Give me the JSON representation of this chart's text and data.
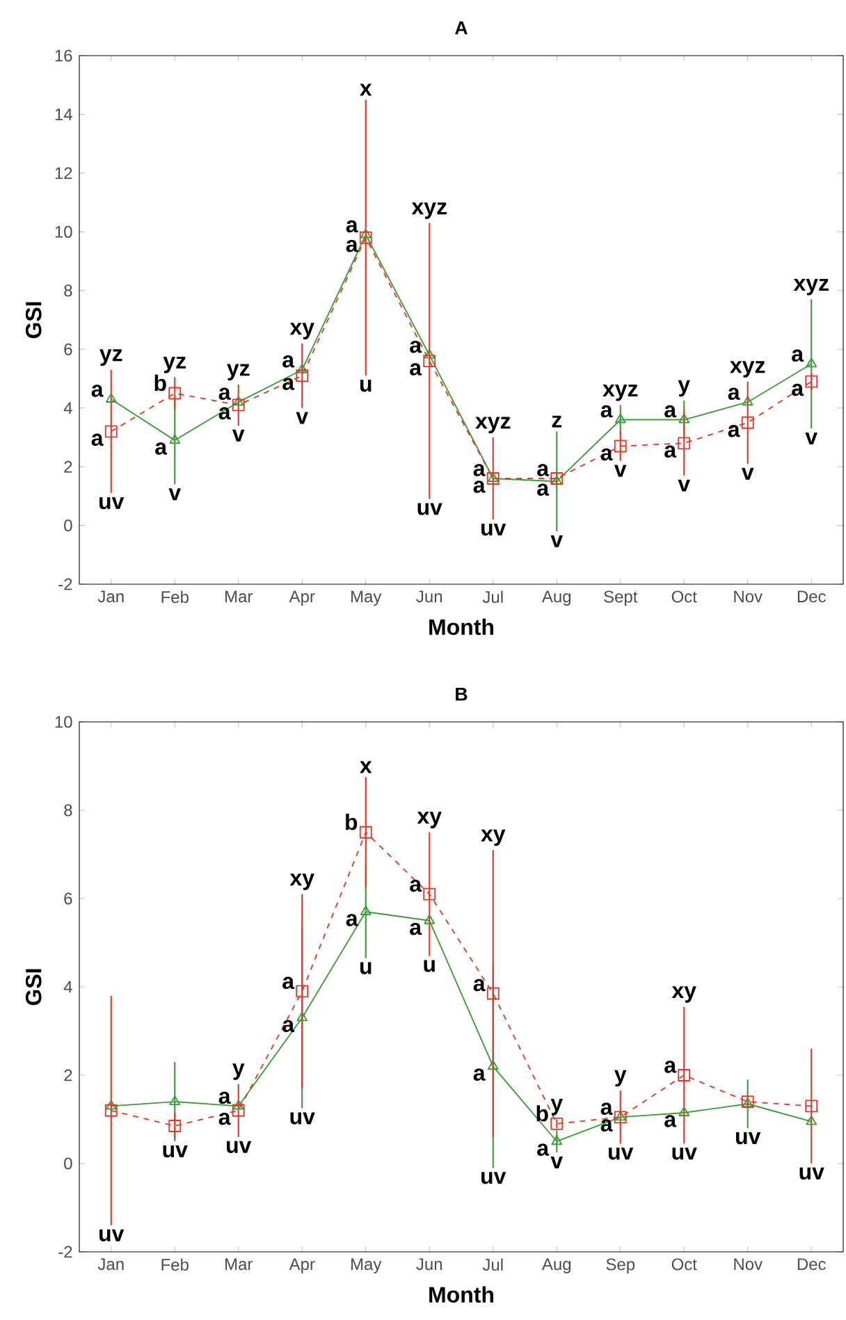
{
  "chart_data": [
    {
      "type": "line",
      "title": "A",
      "xlabel": "Month",
      "ylabel": "GSI",
      "categories": [
        "Jan",
        "Feb",
        "Mar",
        "Apr",
        "May",
        "Jun",
        "Jul",
        "Aug",
        "Sept",
        "Oct",
        "Nov",
        "Dec"
      ],
      "series": [
        {
          "color": "#3c9c3c",
          "marker": "triangle",
          "line_style": "solid",
          "values": [
            4.3,
            2.9,
            4.2,
            5.3,
            9.9,
            5.8,
            1.6,
            1.5,
            3.6,
            3.6,
            4.2,
            5.5
          ],
          "errors": [
            null,
            1.5,
            null,
            null,
            null,
            null,
            null,
            1.7,
            0.5,
            0.65,
            null,
            2.2
          ]
        },
        {
          "color": "#e0392b",
          "marker": "square",
          "line_style": "dashed",
          "values": [
            3.2,
            4.5,
            4.1,
            5.1,
            9.8,
            5.6,
            1.6,
            1.6,
            2.7,
            2.8,
            3.5,
            4.9
          ],
          "errors": [
            2.1,
            0.55,
            0.7,
            1.1,
            4.7,
            4.7,
            1.4,
            0.2,
            0.5,
            1.1,
            1.4,
            0.3
          ]
        }
      ],
      "ylim": [
        -2,
        16
      ],
      "yticks": [
        -2,
        0,
        2,
        4,
        6,
        8,
        10,
        12,
        14,
        16
      ],
      "annotations": [
        {
          "text": "yz",
          "x": "Jan",
          "y": 5.3
        },
        {
          "text": "a",
          "x": "Jan",
          "y": 4.3
        },
        {
          "text": "a",
          "x": "Jan",
          "y": 3.2
        },
        {
          "text": "uv",
          "x": "Jan",
          "y": 1.1
        },
        {
          "text": "yz",
          "x": "Feb",
          "y": 5.05
        },
        {
          "text": "b",
          "x": "Feb",
          "y": 4.5
        },
        {
          "text": "a",
          "x": "Feb",
          "y": 2.9
        },
        {
          "text": "v",
          "x": "Feb",
          "y": 1.4
        },
        {
          "text": "yz",
          "x": "Mar",
          "y": 4.8
        },
        {
          "text": "a",
          "x": "Mar",
          "y": 4.2
        },
        {
          "text": "a",
          "x": "Mar",
          "y": 4.1
        },
        {
          "text": "v",
          "x": "Mar",
          "y": 3.4
        },
        {
          "text": "xy",
          "x": "Apr",
          "y": 6.2
        },
        {
          "text": "a",
          "x": "Apr",
          "y": 5.3
        },
        {
          "text": "a",
          "x": "Apr",
          "y": 5.1
        },
        {
          "text": "v",
          "x": "Apr",
          "y": 4.0
        },
        {
          "text": "x",
          "x": "May",
          "y": 14.5
        },
        {
          "text": "a",
          "x": "May",
          "y": 9.9
        },
        {
          "text": "a",
          "x": "May",
          "y": 9.8
        },
        {
          "text": "u",
          "x": "May",
          "y": 5.1
        },
        {
          "text": "xyz",
          "x": "Jun",
          "y": 10.3
        },
        {
          "text": "a",
          "x": "Jun",
          "y": 5.8
        },
        {
          "text": "a",
          "x": "Jun",
          "y": 5.6
        },
        {
          "text": "uv",
          "x": "Jun",
          "y": 0.9
        },
        {
          "text": "xyz",
          "x": "Jul",
          "y": 3.0
        },
        {
          "text": "a",
          "x": "Jul",
          "y": 1.6
        },
        {
          "text": "a",
          "x": "Jul",
          "y": 1.6
        },
        {
          "text": "uv",
          "x": "Jul",
          "y": 0.2
        },
        {
          "text": "z",
          "x": "Aug",
          "y": 3.2
        },
        {
          "text": "a",
          "x": "Aug",
          "y": 1.6
        },
        {
          "text": "a",
          "x": "Aug",
          "y": 1.5
        },
        {
          "text": "v",
          "x": "Aug",
          "y": -0.2
        },
        {
          "text": "xyz",
          "x": "Sept",
          "y": 4.1
        },
        {
          "text": "a",
          "x": "Sept",
          "y": 3.6
        },
        {
          "text": "a",
          "x": "Sept",
          "y": 2.7
        },
        {
          "text": "v",
          "x": "Sept",
          "y": 2.2
        },
        {
          "text": "y",
          "x": "Oct",
          "y": 4.25
        },
        {
          "text": "a",
          "x": "Oct",
          "y": 3.6
        },
        {
          "text": "a",
          "x": "Oct",
          "y": 2.8
        },
        {
          "text": "v",
          "x": "Oct",
          "y": 1.7
        },
        {
          "text": "xyz",
          "x": "Nov",
          "y": 4.9
        },
        {
          "text": "a",
          "x": "Nov",
          "y": 4.2
        },
        {
          "text": "a",
          "x": "Nov",
          "y": 3.5
        },
        {
          "text": "v",
          "x": "Nov",
          "y": 2.1
        },
        {
          "text": "xyz",
          "x": "Dec",
          "y": 7.7
        },
        {
          "text": "a",
          "x": "Dec",
          "y": 5.5
        },
        {
          "text": "a",
          "x": "Dec",
          "y": 4.9
        },
        {
          "text": "v",
          "x": "Dec",
          "y": 3.3
        }
      ]
    },
    {
      "type": "line",
      "title": "B",
      "xlabel": "Month",
      "ylabel": "GSI",
      "categories": [
        "Jan",
        "Feb",
        "Mar",
        "Apr",
        "May",
        "Jun",
        "Jul",
        "Aug",
        "Sep",
        "Oct",
        "Nov",
        "Dec"
      ],
      "series": [
        {
          "color": "#3c9c3c",
          "marker": "triangle",
          "line_style": "solid",
          "values": [
            1.3,
            1.4,
            1.3,
            3.3,
            5.7,
            5.5,
            2.2,
            0.5,
            1.05,
            1.15,
            1.35,
            0.95
          ],
          "errors": [
            null,
            0.9,
            null,
            2.05,
            1.05,
            null,
            2.3,
            0.25,
            null,
            null,
            0.55,
            null
          ]
        },
        {
          "color": "#e0392b",
          "marker": "square",
          "line_style": "dashed",
          "values": [
            1.2,
            0.85,
            1.2,
            3.9,
            7.5,
            6.1,
            3.85,
            0.9,
            1.05,
            2.0,
            1.4,
            1.3
          ],
          "errors": [
            2.6,
            0.3,
            0.6,
            2.2,
            1.25,
            1.4,
            3.25,
            0.1,
            0.6,
            1.55,
            0.1,
            1.3
          ]
        }
      ],
      "ylim": [
        -2,
        10
      ],
      "yticks": [
        -2,
        0,
        2,
        4,
        6,
        8,
        10
      ],
      "annotations": [
        {
          "text": "uv",
          "x": "Jan",
          "y": -1.4
        },
        {
          "text": "uv",
          "x": "Feb",
          "y": 0.5
        },
        {
          "text": "y",
          "x": "Mar",
          "y": 1.8
        },
        {
          "text": "a",
          "x": "Mar",
          "y": 1.3
        },
        {
          "text": "a",
          "x": "Mar",
          "y": 1.2
        },
        {
          "text": "uv",
          "x": "Mar",
          "y": 0.6
        },
        {
          "text": "xy",
          "x": "Apr",
          "y": 6.1
        },
        {
          "text": "a",
          "x": "Apr",
          "y": 3.9
        },
        {
          "text": "a",
          "x": "Apr",
          "y": 3.3
        },
        {
          "text": "uv",
          "x": "Apr",
          "y": 1.25
        },
        {
          "text": "x",
          "x": "May",
          "y": 8.75
        },
        {
          "text": "b",
          "x": "May",
          "y": 7.5
        },
        {
          "text": "a",
          "x": "May",
          "y": 5.7
        },
        {
          "text": "u",
          "x": "May",
          "y": 4.65
        },
        {
          "text": "xy",
          "x": "Jun",
          "y": 7.5
        },
        {
          "text": "a",
          "x": "Jun",
          "y": 6.1
        },
        {
          "text": "a",
          "x": "Jun",
          "y": 5.5
        },
        {
          "text": "u",
          "x": "Jun",
          "y": 4.7
        },
        {
          "text": "xy",
          "x": "Jul",
          "y": 7.1
        },
        {
          "text": "a",
          "x": "Jul",
          "y": 3.85
        },
        {
          "text": "a",
          "x": "Jul",
          "y": 2.2
        },
        {
          "text": "uv",
          "x": "Jul",
          "y": -0.1
        },
        {
          "text": "y",
          "x": "Aug",
          "y": 1.0
        },
        {
          "text": "b",
          "x": "Aug",
          "y": 0.9
        },
        {
          "text": "a",
          "x": "Aug",
          "y": 0.5
        },
        {
          "text": "v",
          "x": "Aug",
          "y": 0.25
        },
        {
          "text": "y",
          "x": "Sep",
          "y": 1.65
        },
        {
          "text": "a",
          "x": "Sep",
          "y": 1.05
        },
        {
          "text": "a",
          "x": "Sep",
          "y": 1.05
        },
        {
          "text": "uv",
          "x": "Sep",
          "y": 0.45
        },
        {
          "text": "xy",
          "x": "Oct",
          "y": 3.55
        },
        {
          "text": "a",
          "x": "Oct",
          "y": 2.0
        },
        {
          "text": "a",
          "x": "Oct",
          "y": 1.15
        },
        {
          "text": "uv",
          "x": "Oct",
          "y": 0.45
        },
        {
          "text": "uv",
          "x": "Nov",
          "y": 0.8
        },
        {
          "text": "uv",
          "x": "Dec",
          "y": 0.0
        }
      ]
    }
  ]
}
